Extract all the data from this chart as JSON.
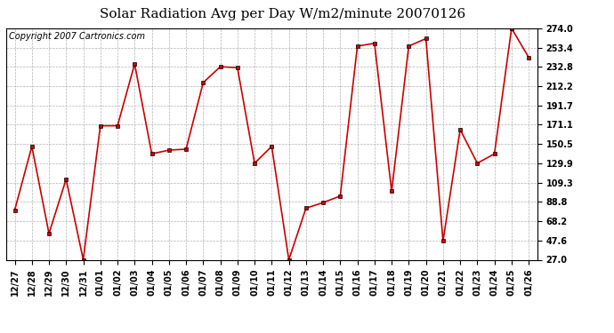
{
  "title": "Solar Radiation Avg per Day W/m2/minute 20070126",
  "copyright": "Copyright 2007 Cartronics.com",
  "labels": [
    "12/27",
    "12/28",
    "12/29",
    "12/30",
    "12/31",
    "01/01",
    "01/02",
    "01/03",
    "01/04",
    "01/05",
    "01/06",
    "01/07",
    "01/08",
    "01/09",
    "01/10",
    "01/11",
    "01/12",
    "01/13",
    "01/14",
    "01/15",
    "01/16",
    "01/17",
    "01/18",
    "01/19",
    "01/20",
    "01/21",
    "01/22",
    "01/23",
    "01/24",
    "01/25",
    "01/26"
  ],
  "values": [
    80,
    148,
    55,
    113,
    27,
    170,
    170,
    236,
    140,
    144,
    145,
    216,
    233,
    232,
    130,
    148,
    27,
    82,
    88,
    95,
    255,
    258,
    100,
    255,
    263,
    47,
    166,
    130,
    140,
    274,
    243
  ],
  "line_color": "#cc0000",
  "marker_color": "#000000",
  "background_color": "#ffffff",
  "grid_color": "#aaaaaa",
  "yticks": [
    27.0,
    47.6,
    68.2,
    88.8,
    109.3,
    129.9,
    150.5,
    171.1,
    191.7,
    212.2,
    232.8,
    253.4,
    274.0
  ],
  "ymin": 27.0,
  "ymax": 274.0,
  "title_fontsize": 11,
  "copyright_fontsize": 7,
  "tick_fontsize": 7,
  "figwidth": 6.9,
  "figheight": 3.75,
  "dpi": 100
}
